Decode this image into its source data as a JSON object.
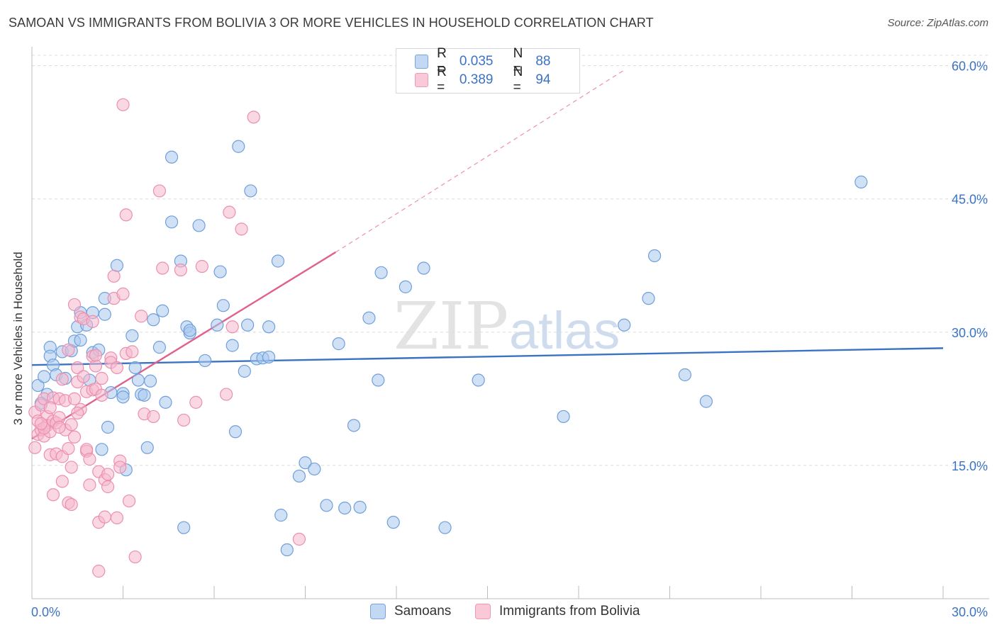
{
  "title": "SAMOAN VS IMMIGRANTS FROM BOLIVIA 3 OR MORE VEHICLES IN HOUSEHOLD CORRELATION CHART",
  "source": "Source: ZipAtlas.com",
  "watermark": {
    "zip": "ZIP",
    "atlas": "atlas"
  },
  "legend": {
    "r_label": "R =",
    "n_label": "N =",
    "rows": [
      {
        "r": "0.035",
        "n": "88"
      },
      {
        "r": "0.389",
        "n": "94"
      }
    ]
  },
  "colors": {
    "blue_fill": "#a9c8ef",
    "blue_stroke": "#6f9fdb",
    "blue_line": "#3b73c4",
    "pink_fill": "#f6b8cc",
    "pink_stroke": "#ec8fae",
    "pink_line": "#e0608e",
    "axis_label": "#3b73c4",
    "grid": "#dcdcdc"
  },
  "chart_data": {
    "type": "scatter",
    "xlabel": "",
    "ylabel": "3 or more Vehicles in Household",
    "xlim": [
      0,
      30
    ],
    "ylim": [
      0,
      63
    ],
    "x_tick_labels": [
      {
        "value": 0,
        "label": "0.0%"
      },
      {
        "value": 30,
        "label": "30.0%"
      }
    ],
    "y_tick_labels": [
      {
        "value": 15,
        "label": "15.0%"
      },
      {
        "value": 30,
        "label": "30.0%"
      },
      {
        "value": 45,
        "label": "45.0%"
      },
      {
        "value": 60,
        "label": "60.0%"
      }
    ],
    "grid": "horizontal-dashed",
    "legend_position": "top-center",
    "series": [
      {
        "name": "Samoans",
        "trend": {
          "x0": 0,
          "y0": 26.3,
          "x1": 30,
          "y1": 28.2,
          "style": "solid"
        },
        "points": [
          [
            0.2,
            24.0
          ],
          [
            0.4,
            25.0
          ],
          [
            0.5,
            23.0
          ],
          [
            0.6,
            28.3
          ],
          [
            0.6,
            27.3
          ],
          [
            0.7,
            26.3
          ],
          [
            0.8,
            25.2
          ],
          [
            1.0,
            27.8
          ],
          [
            1.1,
            24.8
          ],
          [
            1.3,
            27.9
          ],
          [
            1.4,
            29.0
          ],
          [
            1.5,
            30.6
          ],
          [
            1.6,
            29.1
          ],
          [
            1.8,
            30.8
          ],
          [
            1.6,
            32.2
          ],
          [
            2.0,
            27.7
          ],
          [
            2.0,
            32.2
          ],
          [
            2.2,
            28.0
          ],
          [
            2.4,
            33.8
          ],
          [
            2.5,
            19.3
          ],
          [
            2.3,
            16.8
          ],
          [
            2.6,
            23.2
          ],
          [
            2.8,
            37.5
          ],
          [
            3.0,
            23.1
          ],
          [
            3.0,
            22.7
          ],
          [
            3.1,
            14.5
          ],
          [
            3.3,
            29.6
          ],
          [
            3.4,
            26.0
          ],
          [
            3.5,
            24.6
          ],
          [
            3.6,
            23.0
          ],
          [
            3.7,
            22.9
          ],
          [
            3.8,
            17.0
          ],
          [
            3.9,
            24.5
          ],
          [
            4.0,
            31.4
          ],
          [
            4.2,
            28.3
          ],
          [
            4.3,
            32.4
          ],
          [
            4.4,
            22.1
          ],
          [
            4.6,
            49.7
          ],
          [
            4.6,
            42.4
          ],
          [
            4.9,
            38.0
          ],
          [
            5.0,
            8.0
          ],
          [
            5.1,
            30.6
          ],
          [
            5.2,
            29.9
          ],
          [
            5.2,
            30.2
          ],
          [
            5.5,
            42.0
          ],
          [
            5.7,
            26.8
          ],
          [
            6.1,
            30.8
          ],
          [
            6.2,
            36.8
          ],
          [
            6.3,
            33.0
          ],
          [
            6.6,
            28.5
          ],
          [
            6.7,
            18.8
          ],
          [
            6.8,
            50.9
          ],
          [
            7.0,
            25.6
          ],
          [
            7.1,
            30.8
          ],
          [
            7.2,
            45.9
          ],
          [
            7.4,
            27.0
          ],
          [
            7.6,
            27.1
          ],
          [
            7.8,
            27.2
          ],
          [
            7.8,
            30.6
          ],
          [
            8.1,
            38.0
          ],
          [
            8.2,
            9.4
          ],
          [
            8.4,
            5.5
          ],
          [
            8.8,
            13.8
          ],
          [
            9.0,
            15.3
          ],
          [
            9.3,
            14.6
          ],
          [
            9.7,
            10.5
          ],
          [
            10.1,
            28.7
          ],
          [
            10.3,
            10.2
          ],
          [
            10.6,
            19.5
          ],
          [
            10.8,
            10.3
          ],
          [
            11.1,
            31.6
          ],
          [
            11.4,
            24.6
          ],
          [
            11.5,
            36.7
          ],
          [
            11.9,
            8.6
          ],
          [
            12.3,
            35.1
          ],
          [
            12.9,
            37.2
          ],
          [
            13.6,
            8.0
          ],
          [
            14.7,
            24.6
          ],
          [
            17.5,
            20.5
          ],
          [
            19.5,
            30.8
          ],
          [
            20.3,
            33.8
          ],
          [
            20.5,
            38.6
          ],
          [
            21.5,
            25.2
          ],
          [
            22.2,
            22.2
          ],
          [
            27.3,
            46.9
          ],
          [
            2.4,
            32.0
          ],
          [
            1.9,
            24.6
          ],
          [
            0.3,
            22.0
          ]
        ]
      },
      {
        "name": "Immigrants from Bolivia",
        "trend": {
          "x0": 0,
          "y0": 18.0,
          "x1": 10,
          "y1": 39.0,
          "style": "solid",
          "ext_x1": 19.5,
          "ext_y1": 59.5
        },
        "points": [
          [
            0.1,
            17.0
          ],
          [
            0.1,
            21.0
          ],
          [
            0.2,
            18.5
          ],
          [
            0.2,
            20.0
          ],
          [
            0.3,
            19.0
          ],
          [
            0.3,
            21.8
          ],
          [
            0.4,
            18.3
          ],
          [
            0.4,
            22.5
          ],
          [
            0.5,
            20.5
          ],
          [
            0.5,
            19.5
          ],
          [
            0.6,
            18.8
          ],
          [
            0.6,
            16.2
          ],
          [
            0.7,
            20.0
          ],
          [
            0.7,
            22.6
          ],
          [
            0.7,
            11.7
          ],
          [
            0.8,
            16.3
          ],
          [
            0.8,
            19.8
          ],
          [
            0.9,
            20.4
          ],
          [
            0.9,
            22.5
          ],
          [
            1.0,
            13.2
          ],
          [
            1.0,
            16.0
          ],
          [
            1.1,
            19.0
          ],
          [
            1.1,
            22.3
          ],
          [
            1.2,
            10.8
          ],
          [
            1.2,
            16.9
          ],
          [
            1.3,
            10.6
          ],
          [
            1.3,
            14.8
          ],
          [
            1.3,
            19.6
          ],
          [
            1.4,
            22.5
          ],
          [
            1.4,
            33.1
          ],
          [
            1.5,
            26.0
          ],
          [
            1.5,
            24.4
          ],
          [
            1.6,
            21.3
          ],
          [
            1.6,
            31.7
          ],
          [
            1.7,
            31.5
          ],
          [
            1.7,
            25.0
          ],
          [
            1.8,
            23.3
          ],
          [
            1.8,
            16.6
          ],
          [
            1.8,
            16.8
          ],
          [
            1.9,
            12.8
          ],
          [
            1.9,
            15.7
          ],
          [
            2.0,
            27.3
          ],
          [
            2.0,
            23.5
          ],
          [
            2.1,
            26.2
          ],
          [
            2.1,
            23.6
          ],
          [
            2.1,
            27.4
          ],
          [
            2.2,
            8.6
          ],
          [
            2.2,
            14.3
          ],
          [
            2.3,
            24.8
          ],
          [
            2.3,
            22.9
          ],
          [
            2.4,
            9.2
          ],
          [
            2.4,
            13.4
          ],
          [
            2.5,
            14.0
          ],
          [
            2.5,
            12.6
          ],
          [
            2.6,
            27.1
          ],
          [
            2.6,
            26.6
          ],
          [
            2.7,
            36.3
          ],
          [
            2.7,
            33.8
          ],
          [
            2.8,
            26.0
          ],
          [
            2.8,
            9.1
          ],
          [
            2.9,
            15.5
          ],
          [
            2.9,
            14.8
          ],
          [
            3.0,
            34.3
          ],
          [
            3.0,
            55.6
          ],
          [
            3.1,
            43.2
          ],
          [
            3.1,
            27.6
          ],
          [
            3.2,
            11.0
          ],
          [
            3.3,
            27.8
          ],
          [
            3.4,
            4.7
          ],
          [
            3.6,
            31.8
          ],
          [
            3.7,
            20.8
          ],
          [
            4.0,
            20.5
          ],
          [
            4.2,
            45.9
          ],
          [
            4.3,
            37.2
          ],
          [
            4.9,
            37.0
          ],
          [
            5.0,
            20.1
          ],
          [
            5.4,
            22.1
          ],
          [
            5.6,
            37.4
          ],
          [
            6.4,
            23.0
          ],
          [
            6.5,
            43.5
          ],
          [
            6.6,
            30.6
          ],
          [
            6.9,
            41.6
          ],
          [
            7.3,
            54.2
          ],
          [
            8.8,
            6.7
          ],
          [
            1.2,
            28.0
          ],
          [
            0.4,
            19.2
          ],
          [
            0.6,
            21.5
          ],
          [
            0.9,
            19.3
          ],
          [
            2.0,
            31.2
          ],
          [
            1.5,
            20.9
          ],
          [
            0.3,
            19.7
          ],
          [
            2.2,
            3.1
          ],
          [
            1.0,
            24.7
          ],
          [
            1.4,
            18.2
          ]
        ]
      }
    ]
  }
}
